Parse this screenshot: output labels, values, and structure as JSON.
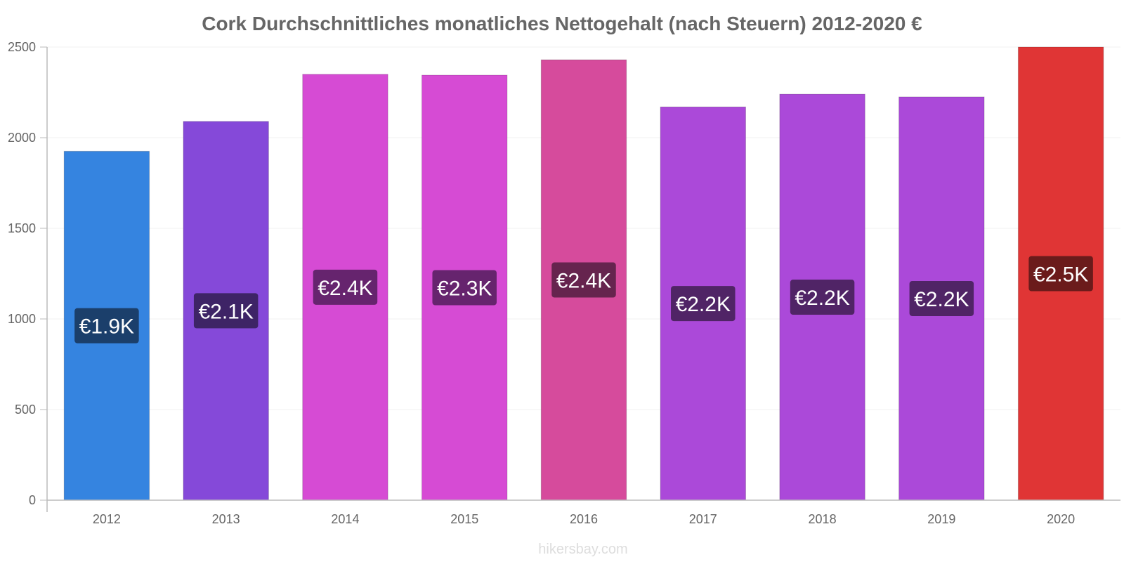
{
  "chart_data": {
    "type": "bar",
    "title": "Cork Durchschnittliches monatliches Nettogehalt (nach Steuern) 2012-2020 €",
    "xlabel": "",
    "ylabel": "",
    "categories": [
      "2012",
      "2013",
      "2014",
      "2015",
      "2016",
      "2017",
      "2018",
      "2019",
      "2020"
    ],
    "values": [
      1925,
      2090,
      2350,
      2345,
      2430,
      2170,
      2240,
      2225,
      2500
    ],
    "value_labels": [
      "€1.9K",
      "€2.1K",
      "€2.4K",
      "€2.3K",
      "€2.4K",
      "€2.2K",
      "€2.2K",
      "€2.2K",
      "€2.5K"
    ],
    "ylim": [
      0,
      2500
    ],
    "yticks": [
      "0",
      "500",
      "1000",
      "1500",
      "2000",
      "2500"
    ],
    "grid": true,
    "legend": "none",
    "bar_colors": [
      "#3584e0",
      "#8549d9",
      "#d64bd4",
      "#d64bd4",
      "#d64b9c",
      "#ab49d9",
      "#ab49d9",
      "#ab49d9",
      "#e03535"
    ],
    "label_colors": [
      "#1b3f6b",
      "#3e2466",
      "#66246e",
      "#66246e",
      "#66244e",
      "#502466",
      "#502466",
      "#502466",
      "#6b1b1b"
    ]
  },
  "watermark": "hikersbay.com"
}
